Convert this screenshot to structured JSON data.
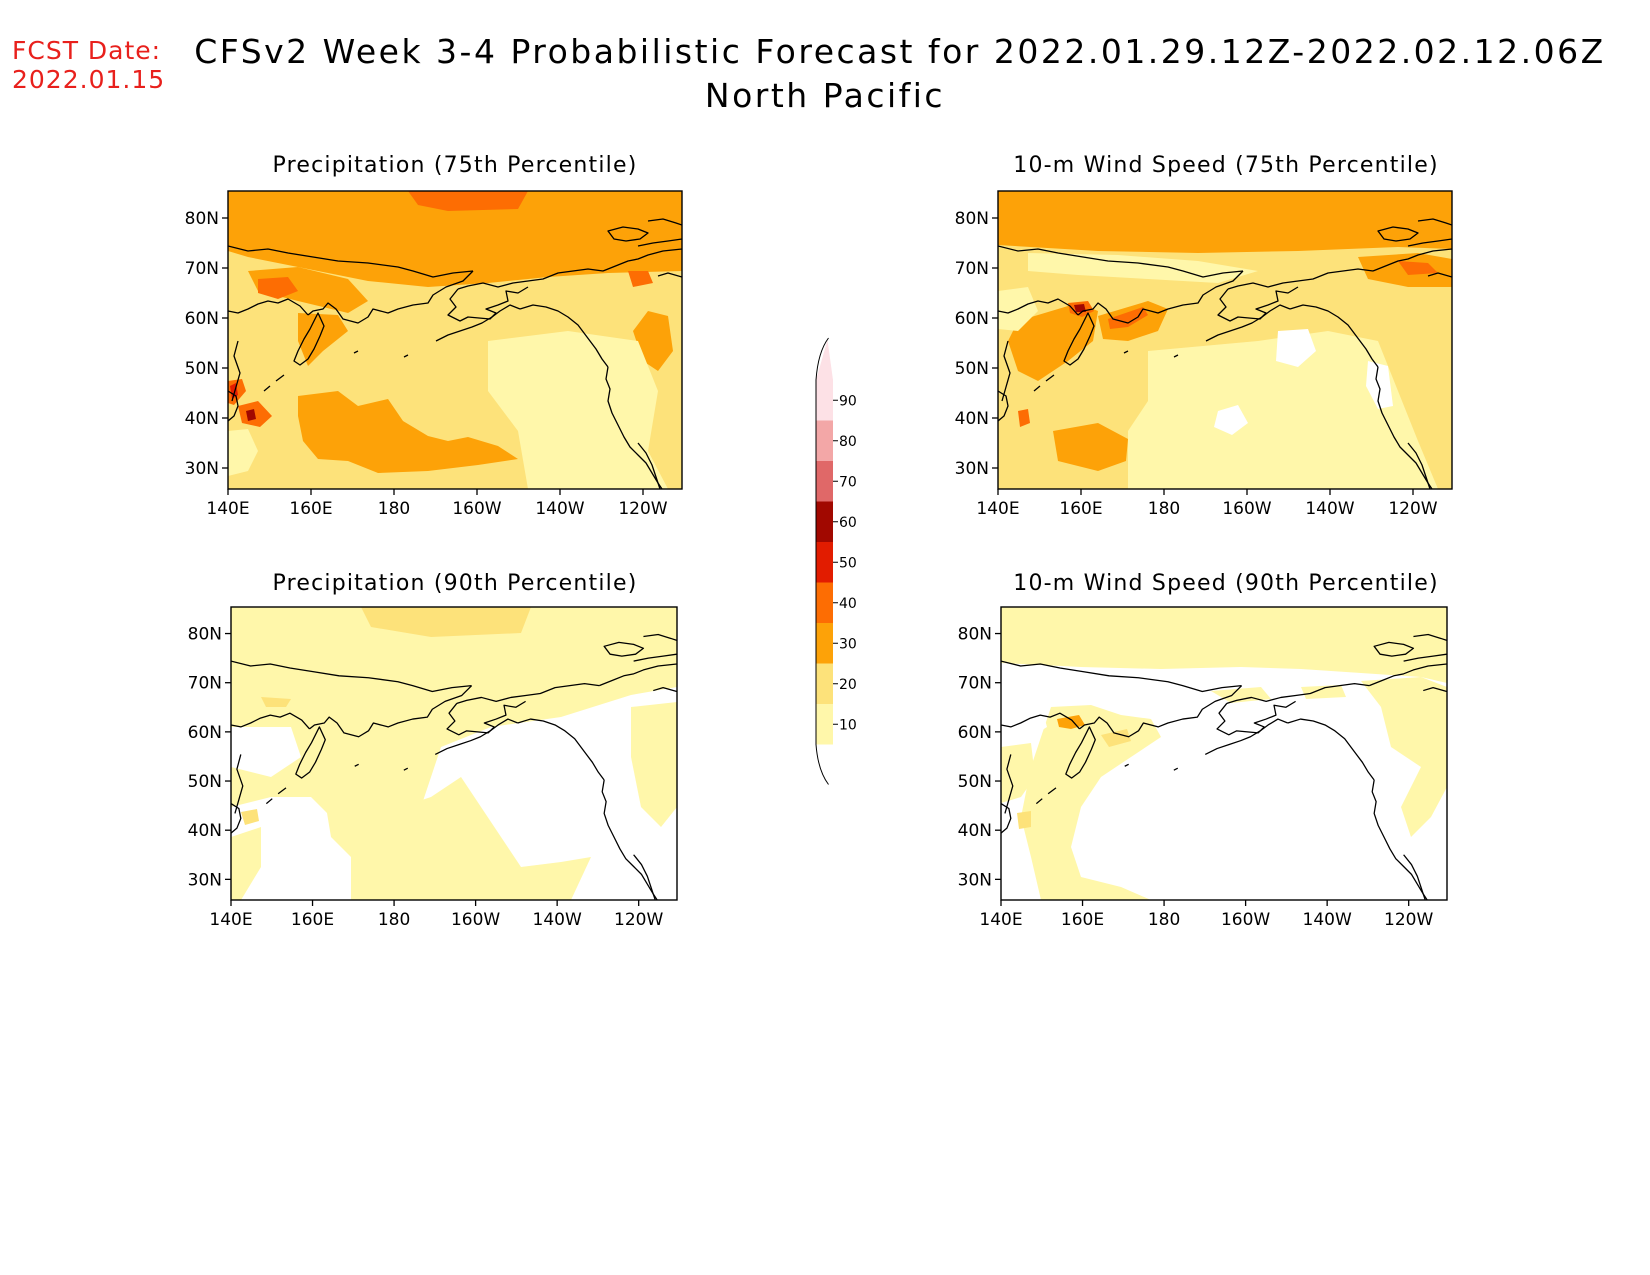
{
  "header": {
    "fcst_label": "FCST Date:",
    "fcst_date": "2022.01.15",
    "title": "CFSv2 Week 3-4 Probabilistic Forecast for 2022.01.29.12Z-2022.02.12.06Z",
    "subtitle": "North Pacific"
  },
  "axes": {
    "lon_ticks": [
      "140E",
      "160E",
      "180",
      "160W",
      "140W",
      "120W"
    ],
    "lat_ticks": [
      "80N",
      "70N",
      "60N",
      "50N",
      "40N",
      "30N"
    ]
  },
  "panels": [
    {
      "id": "precip75",
      "title": "Precipitation (75th Percentile)"
    },
    {
      "id": "wind75",
      "title": "10-m Wind Speed (75th Percentile)"
    },
    {
      "id": "precip90",
      "title": "Precipitation (90th Percentile)"
    },
    {
      "id": "wind90",
      "title": "10-m Wind Speed (90th Percentile)"
    }
  ],
  "colorbar": {
    "labels": [
      "90",
      "80",
      "70",
      "60",
      "50",
      "40",
      "30",
      "20",
      "10"
    ],
    "colors": {
      "10": "#fff7aa",
      "20": "#fde27a",
      "30": "#fda208",
      "40": "#fd6d03",
      "50": "#e21c00",
      "60": "#a10800",
      "70": "#e06868",
      "80": "#f3a7a7",
      "90": "#fde1e6"
    }
  }
}
